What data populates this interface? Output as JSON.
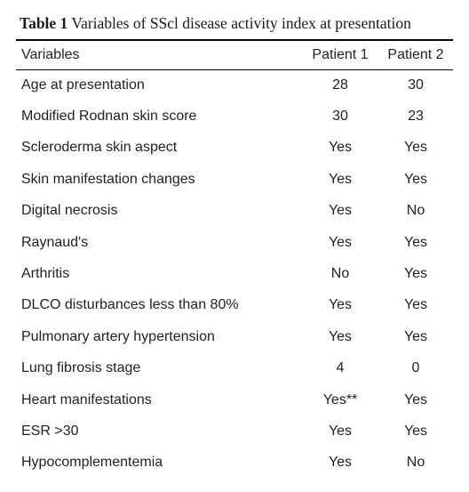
{
  "caption": {
    "label": "Table 1",
    "text": "Variables of SScl disease activity index at presentation"
  },
  "headers": {
    "variables": "Variables",
    "patient1": "Patient 1",
    "patient2": "Patient 2"
  },
  "rows": [
    {
      "variable": "Age at presentation",
      "p1": "28",
      "p2": "30"
    },
    {
      "variable": "Modified Rodnan skin score",
      "p1": "30",
      "p2": "23"
    },
    {
      "variable": "Scleroderma skin aspect",
      "p1": "Yes",
      "p2": "Yes"
    },
    {
      "variable": "Skin manifestation changes",
      "p1": "Yes",
      "p2": "Yes"
    },
    {
      "variable": "Digital necrosis",
      "p1": "Yes",
      "p2": "No"
    },
    {
      "variable": "Raynaud's",
      "p1": "Yes",
      "p2": "Yes"
    },
    {
      "variable": "Arthritis",
      "p1": "No",
      "p2": "Yes"
    },
    {
      "variable": "DLCO disturbances less than 80%",
      "p1": "Yes",
      "p2": "Yes"
    },
    {
      "variable": "Pulmonary artery hypertension",
      "p1": "Yes",
      "p2": "Yes"
    },
    {
      "variable": "Lung fibrosis stage",
      "p1": "4",
      "p2": "0"
    },
    {
      "variable": "Heart manifestations",
      "p1": "Yes**",
      "p2": "Yes"
    },
    {
      "variable": "ESR >30",
      "p1": "Yes",
      "p2": "Yes"
    },
    {
      "variable": "Hypocomplementemia",
      "p1": "Yes",
      "p2": "No"
    }
  ]
}
